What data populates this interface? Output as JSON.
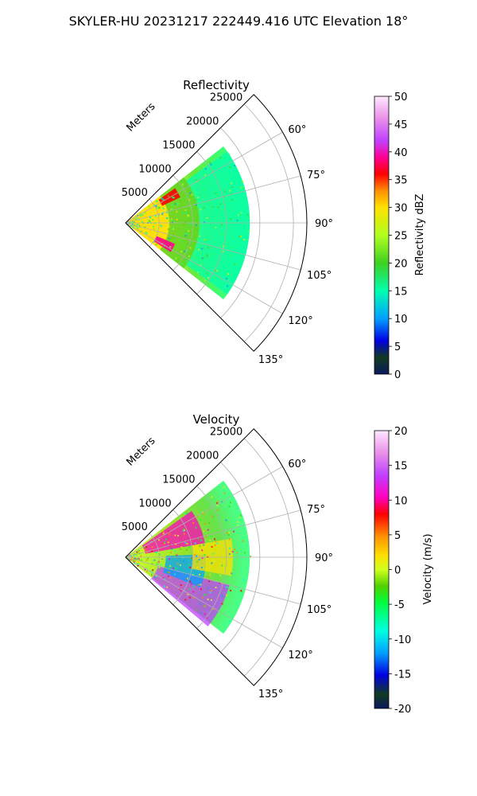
{
  "figure": {
    "title": "SKYLER-HU  20231217  222449.416 UTC Elevation 18°"
  },
  "chart_data": [
    {
      "type": "heatmap",
      "title": "Reflectivity",
      "projection": "polar-sector",
      "range_label": "Meters",
      "range_ticks": [
        5000,
        10000,
        15000,
        20000,
        25000
      ],
      "range_max": 27000,
      "data_range_max": 18500,
      "azimuth_range": [
        45,
        135
      ],
      "azimuth_tick_labels": [
        "60°",
        "75°",
        "90°",
        "105°",
        "120°",
        "135°"
      ],
      "azimuth_ticks": [
        60,
        75,
        90,
        105,
        120,
        135
      ],
      "grid": true,
      "colorbar": {
        "label": "Reflectivity dBZ",
        "min": 0,
        "max": 50,
        "ticks": [
          0,
          5,
          10,
          15,
          20,
          25,
          30,
          35,
          40,
          45,
          50
        ]
      },
      "features": [
        {
          "desc": "high reflectivity near radar",
          "azimuth_range": [
            52,
            128
          ],
          "range_range": [
            0,
            6500
          ],
          "value": 28
        },
        {
          "desc": "moderate band",
          "azimuth_range": [
            52,
            128
          ],
          "range_range": [
            6500,
            11000
          ],
          "value": 23
        },
        {
          "desc": "outer echoes",
          "azimuth_range": [
            55,
            125
          ],
          "range_range": [
            11000,
            18500
          ],
          "value": 17
        },
        {
          "desc": "core at ~60 deg",
          "azimuth": 60,
          "range": 7500,
          "value": 36
        },
        {
          "desc": "core at ~118 deg",
          "azimuth": 118,
          "range": 6500,
          "value": 40
        }
      ]
    },
    {
      "type": "heatmap",
      "title": "Velocity",
      "projection": "polar-sector",
      "range_label": "Meters",
      "range_ticks": [
        5000,
        10000,
        15000,
        20000,
        25000
      ],
      "range_max": 27000,
      "data_range_max": 18500,
      "azimuth_range": [
        45,
        135
      ],
      "azimuth_tick_labels": [
        "60°",
        "75°",
        "90°",
        "105°",
        "120°",
        "135°"
      ],
      "azimuth_ticks": [
        60,
        75,
        90,
        105,
        120,
        135
      ],
      "grid": true,
      "colorbar": {
        "label": "Velocity (m/s)",
        "min": -20,
        "max": 20,
        "ticks": [
          -20,
          -15,
          -10,
          -5,
          0,
          5,
          10,
          15,
          20
        ]
      },
      "features": [
        {
          "desc": "positive (red/magenta) band north side",
          "azimuth_range": [
            55,
            80
          ],
          "range_range": [
            3000,
            12000
          ],
          "value": 12
        },
        {
          "desc": "negative (purple) band south side",
          "azimuth_range": [
            105,
            130
          ],
          "range_range": [
            5000,
            16000
          ],
          "value": 15
        },
        {
          "desc": "cyan negative region",
          "azimuth_range": [
            88,
            112
          ],
          "range_range": [
            6000,
            12000
          ],
          "value": -11
        },
        {
          "desc": "near-zero yellow core",
          "azimuth_range": [
            80,
            100
          ],
          "range_range": [
            10000,
            16000
          ],
          "value": 1
        }
      ]
    }
  ]
}
